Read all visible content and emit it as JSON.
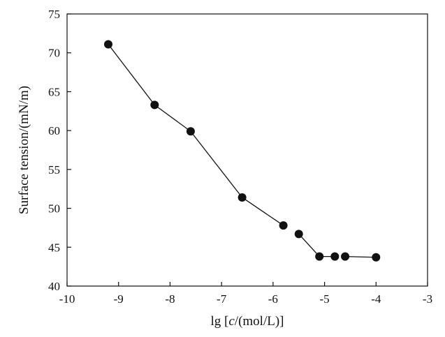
{
  "chart_data": {
    "type": "scatter",
    "title": "",
    "xlabel_prefix": "lg [",
    "xlabel_italic": "c",
    "xlabel_suffix": "/(mol/L)]",
    "ylabel": "Surface tension/(mN/m)",
    "xlim": [
      -10,
      -3
    ],
    "ylim": [
      40,
      75
    ],
    "xticks": [
      -10,
      -9,
      -8,
      -7,
      -6,
      -5,
      -4,
      -3
    ],
    "yticks": [
      40,
      45,
      50,
      55,
      60,
      65,
      70,
      75
    ],
    "grid": false,
    "legend": "none",
    "series": [
      {
        "x": [
          -9.2,
          -8.3,
          -7.6,
          -6.6,
          -5.8,
          -5.5,
          -5.1,
          -4.8,
          -4.6,
          -4.0
        ],
        "y": [
          71.1,
          63.3,
          59.9,
          51.4,
          47.8,
          46.7,
          43.8,
          43.8,
          43.8,
          43.7
        ],
        "segments": [
          [
            0,
            1
          ],
          [
            1,
            2
          ],
          [
            2,
            3
          ],
          [
            3,
            4
          ],
          [
            5,
            6
          ],
          [
            6,
            7
          ],
          [
            8,
            9
          ]
        ]
      }
    ]
  }
}
